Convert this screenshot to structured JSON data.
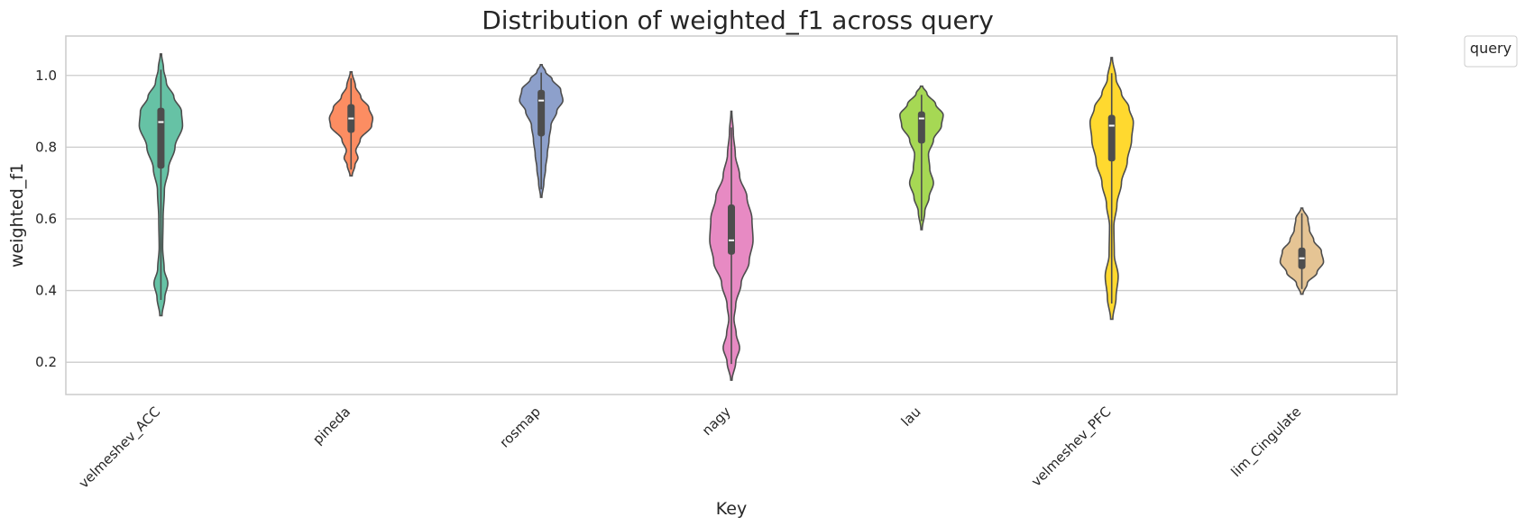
{
  "chart_data": {
    "type": "violin",
    "title": "Distribution of weighted_f1 across query",
    "xlabel": "Key",
    "ylabel": "weighted_f1",
    "ylim": [
      0.11,
      1.11
    ],
    "yticks": [
      0.2,
      0.4,
      0.6,
      0.8,
      1.0
    ],
    "ytick_labels": [
      "0.2",
      "0.4",
      "0.6",
      "0.8",
      "1.0"
    ],
    "grid": "horizontal",
    "legend": {
      "title": "query",
      "placement": "outside-top-right"
    },
    "categories": [
      "velmeshev_ACC",
      "pineda",
      "rosmap",
      "nagy",
      "lau",
      "velmeshev_PFC",
      "lim_Cingulate"
    ],
    "series": [
      {
        "category": "velmeshev_ACC",
        "color": "#66c2a5",
        "min": 0.33,
        "max": 1.06,
        "q1": 0.74,
        "median": 0.87,
        "q3": 0.91,
        "profile": [
          [
            0.33,
            0.05
          ],
          [
            0.38,
            0.18
          ],
          [
            0.42,
            0.32
          ],
          [
            0.46,
            0.15
          ],
          [
            0.52,
            0.08
          ],
          [
            0.6,
            0.1
          ],
          [
            0.68,
            0.16
          ],
          [
            0.74,
            0.35
          ],
          [
            0.8,
            0.65
          ],
          [
            0.86,
            1.0
          ],
          [
            0.9,
            0.95
          ],
          [
            0.94,
            0.6
          ],
          [
            0.98,
            0.25
          ],
          [
            1.02,
            0.12
          ],
          [
            1.06,
            0.03
          ]
        ]
      },
      {
        "category": "pineda",
        "color": "#fc8d62",
        "min": 0.72,
        "max": 1.01,
        "q1": 0.84,
        "median": 0.88,
        "q3": 0.92,
        "profile": [
          [
            0.72,
            0.05
          ],
          [
            0.75,
            0.18
          ],
          [
            0.77,
            0.32
          ],
          [
            0.79,
            0.22
          ],
          [
            0.82,
            0.42
          ],
          [
            0.86,
            0.95
          ],
          [
            0.88,
            1.0
          ],
          [
            0.91,
            0.82
          ],
          [
            0.94,
            0.45
          ],
          [
            0.97,
            0.2
          ],
          [
            1.01,
            0.04
          ]
        ]
      },
      {
        "category": "rosmap",
        "color": "#8da0cb",
        "min": 0.66,
        "max": 1.03,
        "q1": 0.83,
        "median": 0.93,
        "q3": 0.96,
        "profile": [
          [
            0.66,
            0.03
          ],
          [
            0.7,
            0.12
          ],
          [
            0.74,
            0.2
          ],
          [
            0.78,
            0.28
          ],
          [
            0.82,
            0.36
          ],
          [
            0.86,
            0.45
          ],
          [
            0.9,
            0.72
          ],
          [
            0.93,
            1.0
          ],
          [
            0.96,
            0.9
          ],
          [
            0.99,
            0.5
          ],
          [
            1.01,
            0.2
          ],
          [
            1.03,
            0.04
          ]
        ]
      },
      {
        "category": "nagy",
        "color": "#e78ac3",
        "min": 0.15,
        "max": 0.9,
        "q1": 0.5,
        "median": 0.54,
        "q3": 0.64,
        "profile": [
          [
            0.15,
            0.03
          ],
          [
            0.2,
            0.2
          ],
          [
            0.24,
            0.38
          ],
          [
            0.28,
            0.22
          ],
          [
            0.32,
            0.12
          ],
          [
            0.36,
            0.2
          ],
          [
            0.42,
            0.45
          ],
          [
            0.48,
            0.82
          ],
          [
            0.54,
            1.0
          ],
          [
            0.6,
            0.95
          ],
          [
            0.66,
            0.72
          ],
          [
            0.72,
            0.38
          ],
          [
            0.78,
            0.18
          ],
          [
            0.84,
            0.09
          ],
          [
            0.9,
            0.02
          ]
        ]
      },
      {
        "category": "lau",
        "color": "#a6d854",
        "min": 0.57,
        "max": 0.97,
        "q1": 0.81,
        "median": 0.88,
        "q3": 0.9,
        "profile": [
          [
            0.57,
            0.03
          ],
          [
            0.62,
            0.15
          ],
          [
            0.66,
            0.35
          ],
          [
            0.7,
            0.55
          ],
          [
            0.74,
            0.38
          ],
          [
            0.78,
            0.32
          ],
          [
            0.82,
            0.55
          ],
          [
            0.86,
            0.92
          ],
          [
            0.89,
            1.0
          ],
          [
            0.92,
            0.65
          ],
          [
            0.95,
            0.25
          ],
          [
            0.97,
            0.05
          ]
        ]
      },
      {
        "category": "velmeshev_PFC",
        "color": "#ffd92f",
        "min": 0.32,
        "max": 1.05,
        "q1": 0.76,
        "median": 0.86,
        "q3": 0.89,
        "profile": [
          [
            0.32,
            0.05
          ],
          [
            0.38,
            0.2
          ],
          [
            0.44,
            0.3
          ],
          [
            0.5,
            0.12
          ],
          [
            0.58,
            0.1
          ],
          [
            0.64,
            0.24
          ],
          [
            0.7,
            0.45
          ],
          [
            0.76,
            0.72
          ],
          [
            0.82,
            0.92
          ],
          [
            0.87,
            1.0
          ],
          [
            0.91,
            0.8
          ],
          [
            0.95,
            0.45
          ],
          [
            0.99,
            0.2
          ],
          [
            1.05,
            0.03
          ]
        ]
      },
      {
        "category": "lim_Cingulate",
        "color": "#e5c494",
        "min": 0.39,
        "max": 0.63,
        "q1": 0.46,
        "median": 0.49,
        "q3": 0.52,
        "profile": [
          [
            0.39,
            0.05
          ],
          [
            0.42,
            0.25
          ],
          [
            0.45,
            0.7
          ],
          [
            0.48,
            1.0
          ],
          [
            0.51,
            0.9
          ],
          [
            0.54,
            0.55
          ],
          [
            0.57,
            0.35
          ],
          [
            0.6,
            0.28
          ],
          [
            0.63,
            0.04
          ]
        ]
      }
    ]
  }
}
